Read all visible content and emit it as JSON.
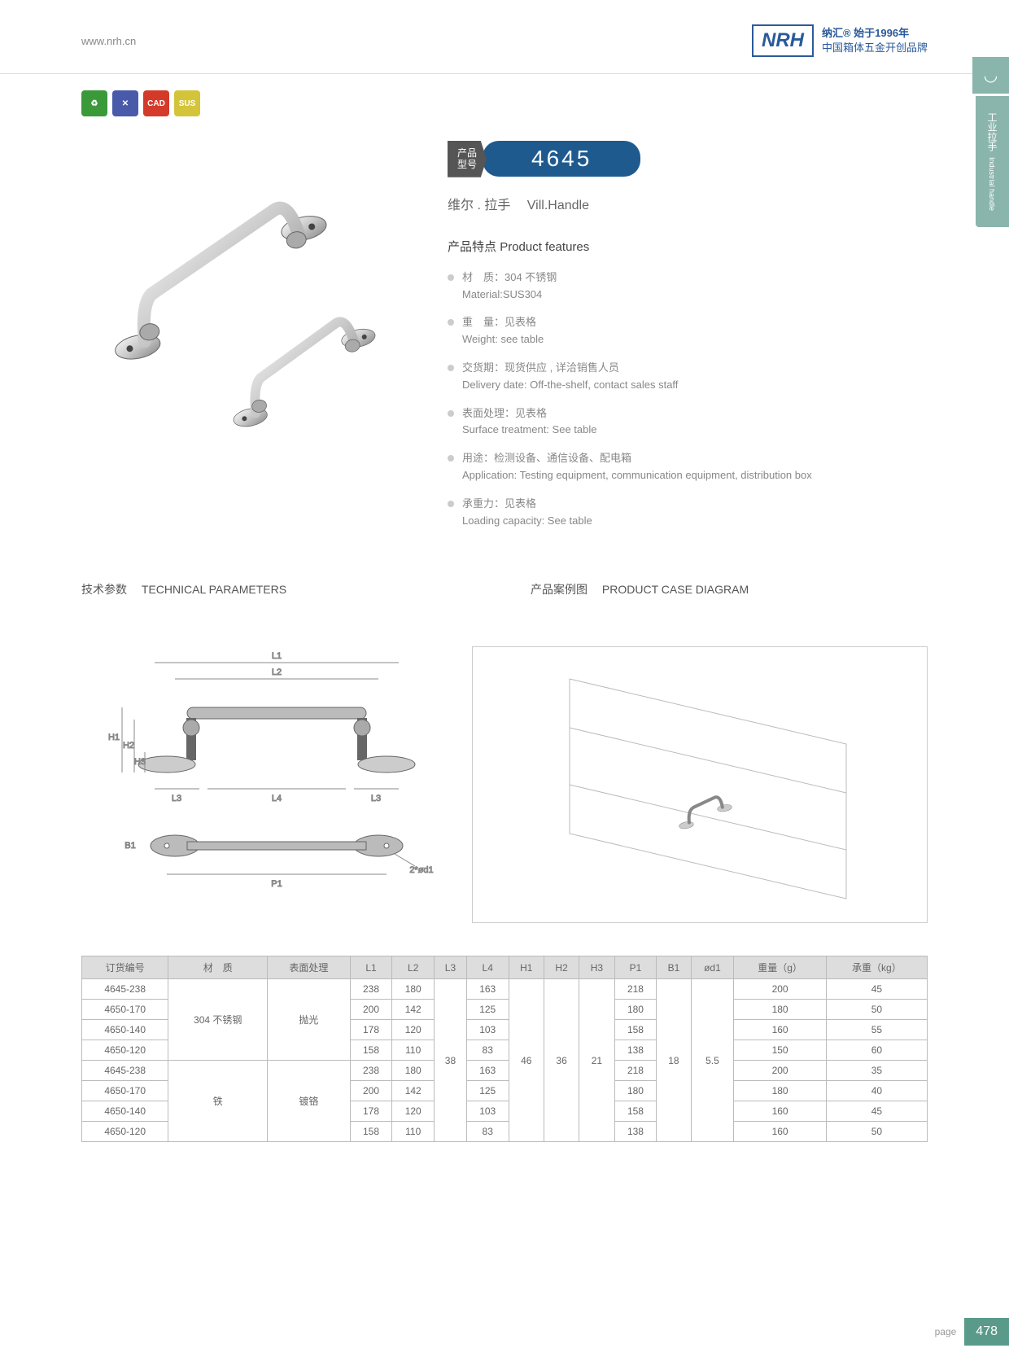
{
  "header": {
    "url": "www.nrh.cn",
    "brand": "NRH",
    "tagline_top": "纳汇® 始于1996年",
    "tagline_bottom": "中国箱体五金开创品牌"
  },
  "sidetab": {
    "text_cn": "工业拉手",
    "text_en": "Industrial handle"
  },
  "badges": [
    {
      "bg": "#3a9a3a",
      "text": "♻"
    },
    {
      "bg": "#4a5aaa",
      "text": "✕"
    },
    {
      "bg": "#d43a2a",
      "text": "CAD"
    },
    {
      "bg": "#d4c43a",
      "text": "SUS"
    }
  ],
  "model": {
    "label_line1": "产品",
    "label_line2": "型号",
    "number": "4645"
  },
  "subtitle": {
    "cn": "维尔 . 拉手",
    "en": "Vill.Handle"
  },
  "features_title": {
    "cn": "产品特点",
    "en": "Product features"
  },
  "features": [
    {
      "cn": "材　质：304 不锈钢",
      "en": "Material:SUS304"
    },
    {
      "cn": "重　量：见表格",
      "en": "Weight: see table"
    },
    {
      "cn": "交货期：现货供应 , 详洽销售人员",
      "en": "Delivery date: Off-the-shelf, contact sales staff"
    },
    {
      "cn": "表面处理：见表格",
      "en": "Surface treatment: See table"
    },
    {
      "cn": "用途：检测设备、通信设备、配电箱",
      "en": "Application: Testing equipment, communication equipment, distribution box"
    },
    {
      "cn": "承重力：见表格",
      "en": "Loading capacity: See table"
    }
  ],
  "tech_title": {
    "cn": "技术参数",
    "en": "TECHNICAL PARAMETERS"
  },
  "case_title": {
    "cn": "产品案例图",
    "en": "PRODUCT CASE DIAGRAM"
  },
  "diagram_labels": {
    "L1": "L1",
    "L2": "L2",
    "L3": "L3",
    "L4": "L4",
    "H1": "H1",
    "H2": "H2",
    "H3": "H3",
    "B1": "B1",
    "P1": "P1",
    "d1": "2*ød1"
  },
  "table": {
    "headers": [
      "订货编号",
      "材　质",
      "表面处理",
      "L1",
      "L2",
      "L3",
      "L4",
      "H1",
      "H2",
      "H3",
      "P1",
      "B1",
      "ød1",
      "重量（g）",
      "承重（kg）"
    ],
    "rows": [
      [
        "4645-238",
        "",
        "",
        "238",
        "180",
        "",
        "163",
        "",
        "",
        "",
        "218",
        "",
        "",
        "200",
        "45"
      ],
      [
        "4650-170",
        "304 不锈钢",
        "抛光",
        "200",
        "142",
        "",
        "125",
        "",
        "",
        "",
        "180",
        "",
        "",
        "180",
        "50"
      ],
      [
        "4650-140",
        "",
        "",
        "178",
        "120",
        "",
        "103",
        "",
        "",
        "",
        "158",
        "",
        "",
        "160",
        "55"
      ],
      [
        "4650-120",
        "",
        "",
        "158",
        "110",
        "38",
        "83",
        "46",
        "36",
        "21",
        "138",
        "18",
        "5.5",
        "150",
        "60"
      ],
      [
        "4645-238",
        "",
        "",
        "238",
        "180",
        "",
        "163",
        "",
        "",
        "",
        "218",
        "",
        "",
        "200",
        "35"
      ],
      [
        "4650-170",
        "铁",
        "镀铬",
        "200",
        "142",
        "",
        "125",
        "",
        "",
        "",
        "180",
        "",
        "",
        "180",
        "40"
      ],
      [
        "4650-140",
        "",
        "",
        "178",
        "120",
        "",
        "103",
        "",
        "",
        "",
        "158",
        "",
        "",
        "160",
        "45"
      ],
      [
        "4650-120",
        "",
        "",
        "158",
        "110",
        "",
        "83",
        "",
        "",
        "",
        "138",
        "",
        "",
        "160",
        "50"
      ]
    ]
  },
  "footer": {
    "page_label": "page",
    "page_num": "478"
  }
}
